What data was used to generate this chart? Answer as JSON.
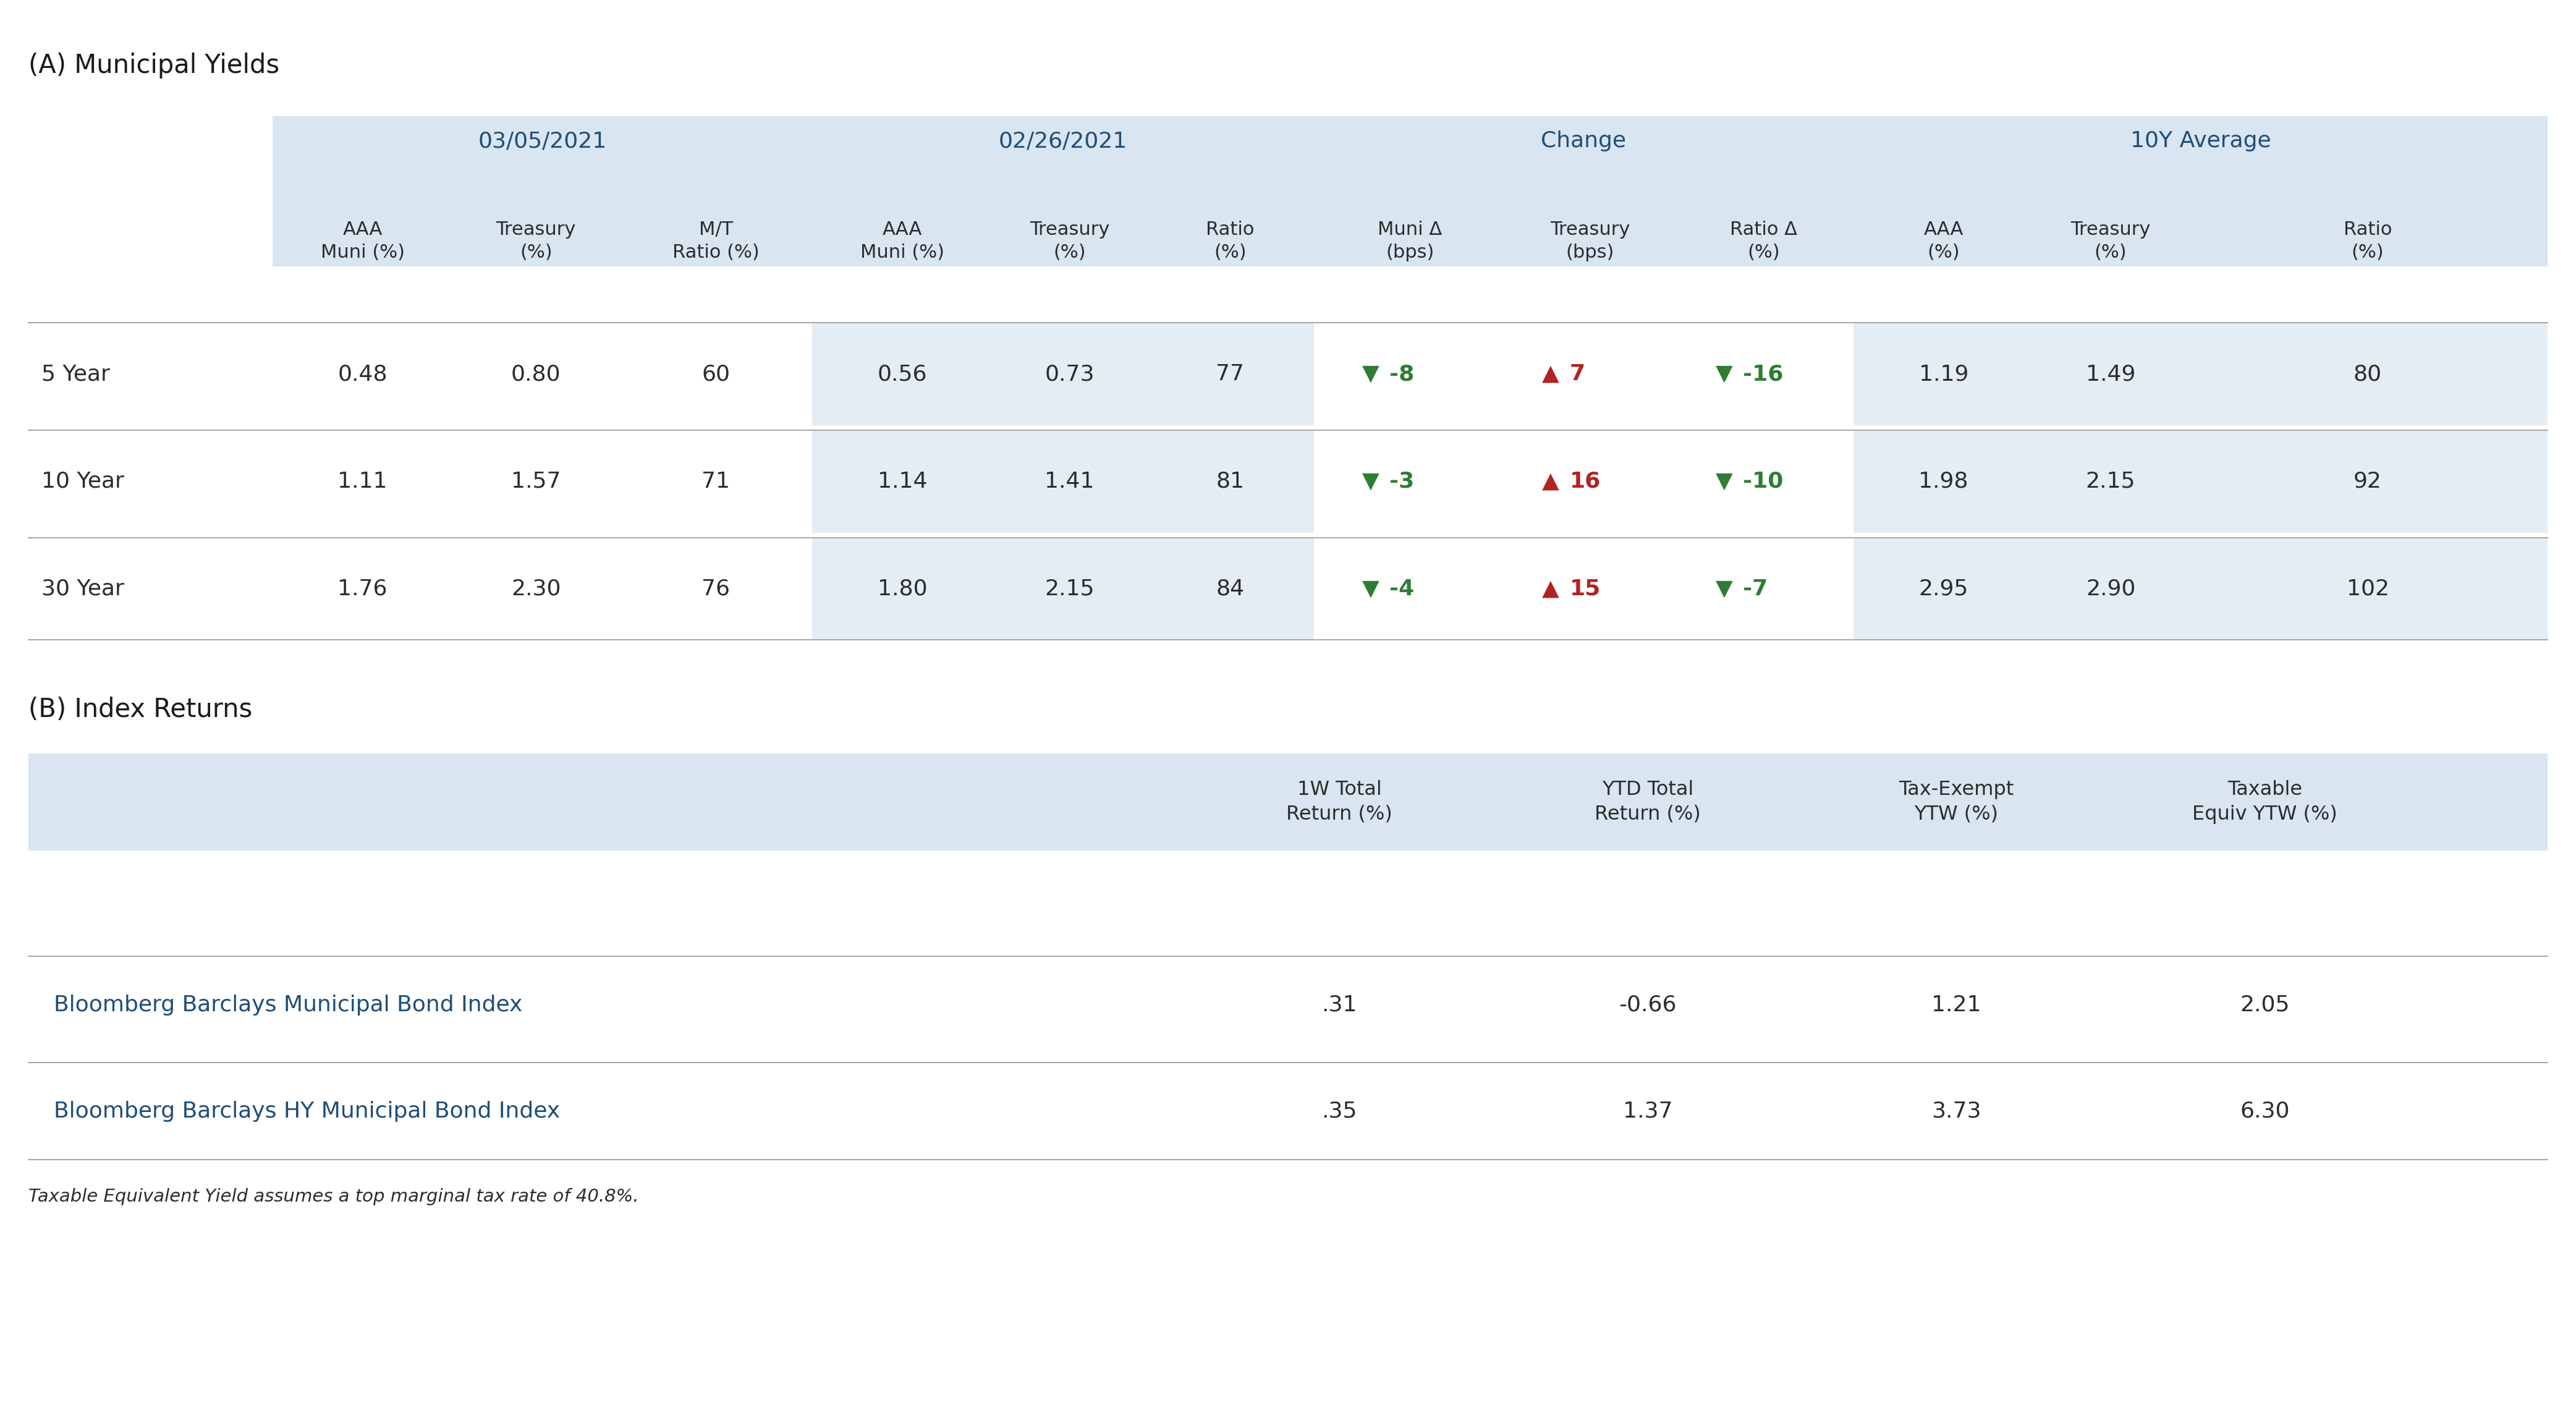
{
  "section_a_title": "(A) Municipal Yields",
  "section_b_title": "(B) Index Returns",
  "footnote": "Taxable Equivalent Yield assumes a top marginal tax rate of 40.8%.",
  "col_group_labels": [
    "03/05/2021",
    "02/26/2021",
    "Change",
    "10Y Average"
  ],
  "col_group_label_color": "#1F4E79",
  "row_labels": [
    "5 Year",
    "10 Year",
    "30 Year"
  ],
  "table_data": [
    [
      "0.48",
      "0.80",
      "60",
      "0.56",
      "0.73",
      "77",
      "-8",
      "7",
      "-16",
      "1.19",
      "1.49",
      "80"
    ],
    [
      "1.11",
      "1.57",
      "71",
      "1.14",
      "1.41",
      "81",
      "-3",
      "16",
      "-10",
      "1.98",
      "2.15",
      "92"
    ],
    [
      "1.76",
      "2.30",
      "76",
      "1.80",
      "2.15",
      "84",
      "-4",
      "15",
      "-7",
      "2.95",
      "2.90",
      "102"
    ]
  ],
  "change_arrows": [
    [
      "▼",
      "▲",
      "▼"
    ],
    [
      "▼",
      "▲",
      "▼"
    ],
    [
      "▼",
      "▲",
      "▼"
    ]
  ],
  "change_colors": [
    [
      "#2E7D32",
      "#B22222",
      "#2E7D32"
    ],
    [
      "#2E7D32",
      "#B22222",
      "#2E7D32"
    ],
    [
      "#2E7D32",
      "#B22222",
      "#2E7D32"
    ]
  ],
  "index_headers": [
    "1W Total\nReturn (%)",
    "YTD Total\nReturn (%)",
    "Tax-Exempt\nYTW (%)",
    "Taxable\nEquiv YTW (%)"
  ],
  "index_rows": [
    [
      "Bloomberg Barclays Municipal Bond Index",
      ".31",
      "-0.66",
      "1.21",
      "2.05"
    ],
    [
      "Bloomberg Barclays HY Municipal Bond Index",
      ".35",
      "1.37",
      "3.73",
      "6.30"
    ]
  ],
  "index_name_color": "#1F4E79",
  "divider_color": "#AAAAAA",
  "section_bg": "#D9E5F0",
  "shade_bg": "#E4ECF4",
  "text_color": "#2C2C2C",
  "green_color": "#2E7D32",
  "red_color": "#B22222"
}
